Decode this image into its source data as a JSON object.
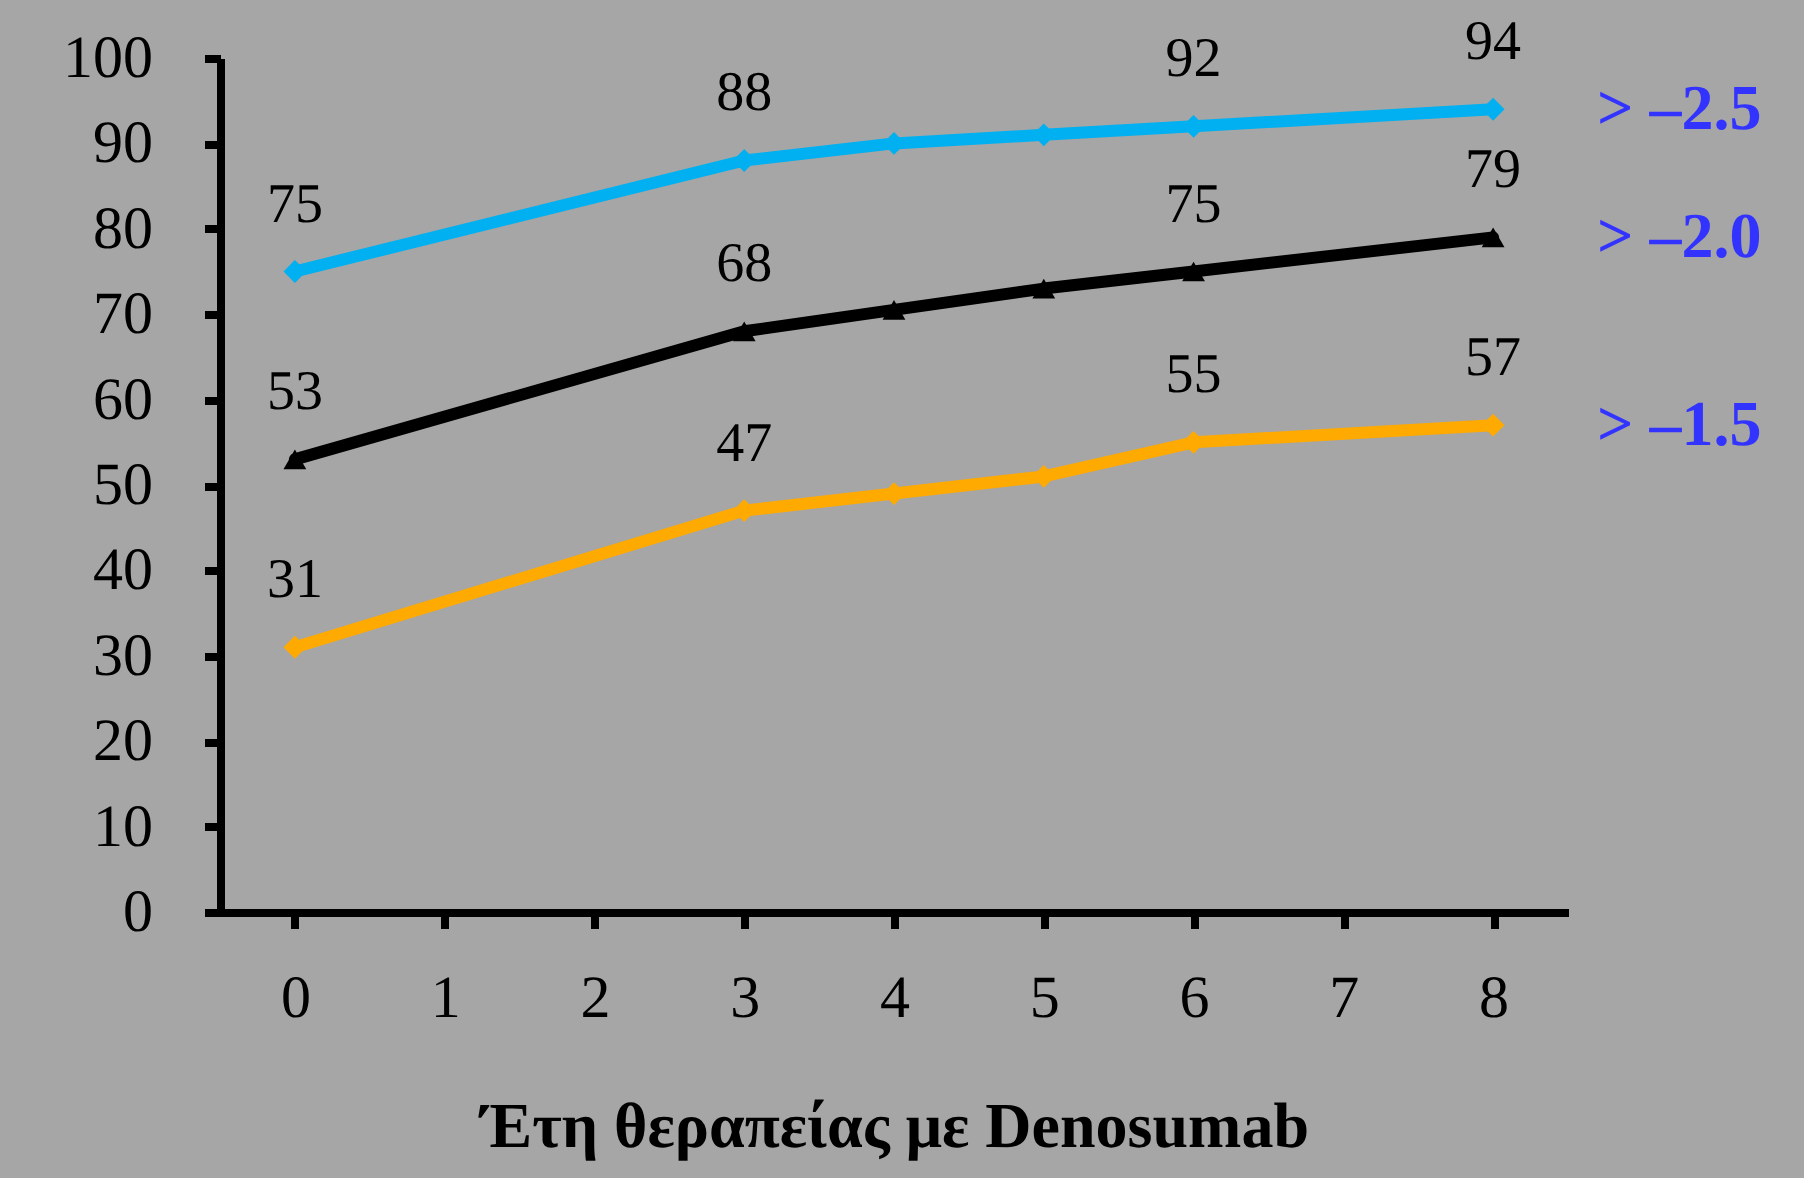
{
  "chart_data": {
    "type": "line",
    "xlabel": "Έτη θεραπείας με Denosumab",
    "x": [
      0,
      3,
      4,
      5,
      6,
      8
    ],
    "series": [
      {
        "name": "> –2.5",
        "color": "#00b0f0",
        "marker": "diamond",
        "values": [
          75,
          88,
          90,
          91,
          92,
          94
        ],
        "value_labels": [
          "75",
          "88",
          null,
          null,
          "92",
          "94"
        ]
      },
      {
        "name": "> –2.0",
        "color": "#000000",
        "marker": "triangle",
        "values": [
          53,
          68,
          70.5,
          73,
          75,
          79
        ],
        "value_labels": [
          "53",
          "68",
          null,
          null,
          "75",
          "79"
        ]
      },
      {
        "name": "> –1.5",
        "color": "#ffaa00",
        "marker": "diamond",
        "values": [
          31,
          47,
          49,
          51,
          55,
          57
        ],
        "value_labels": [
          "31",
          "47",
          null,
          null,
          "55",
          "57"
        ]
      }
    ],
    "xlim": [
      -0.5,
      8.5
    ],
    "xticks": [
      0,
      1,
      2,
      3,
      4,
      5,
      6,
      7,
      8
    ],
    "ylim": [
      0,
      100
    ],
    "yticks": [
      0,
      10,
      20,
      30,
      40,
      50,
      60,
      70,
      80,
      90,
      100
    ],
    "grid": false,
    "line_style": "solid"
  }
}
